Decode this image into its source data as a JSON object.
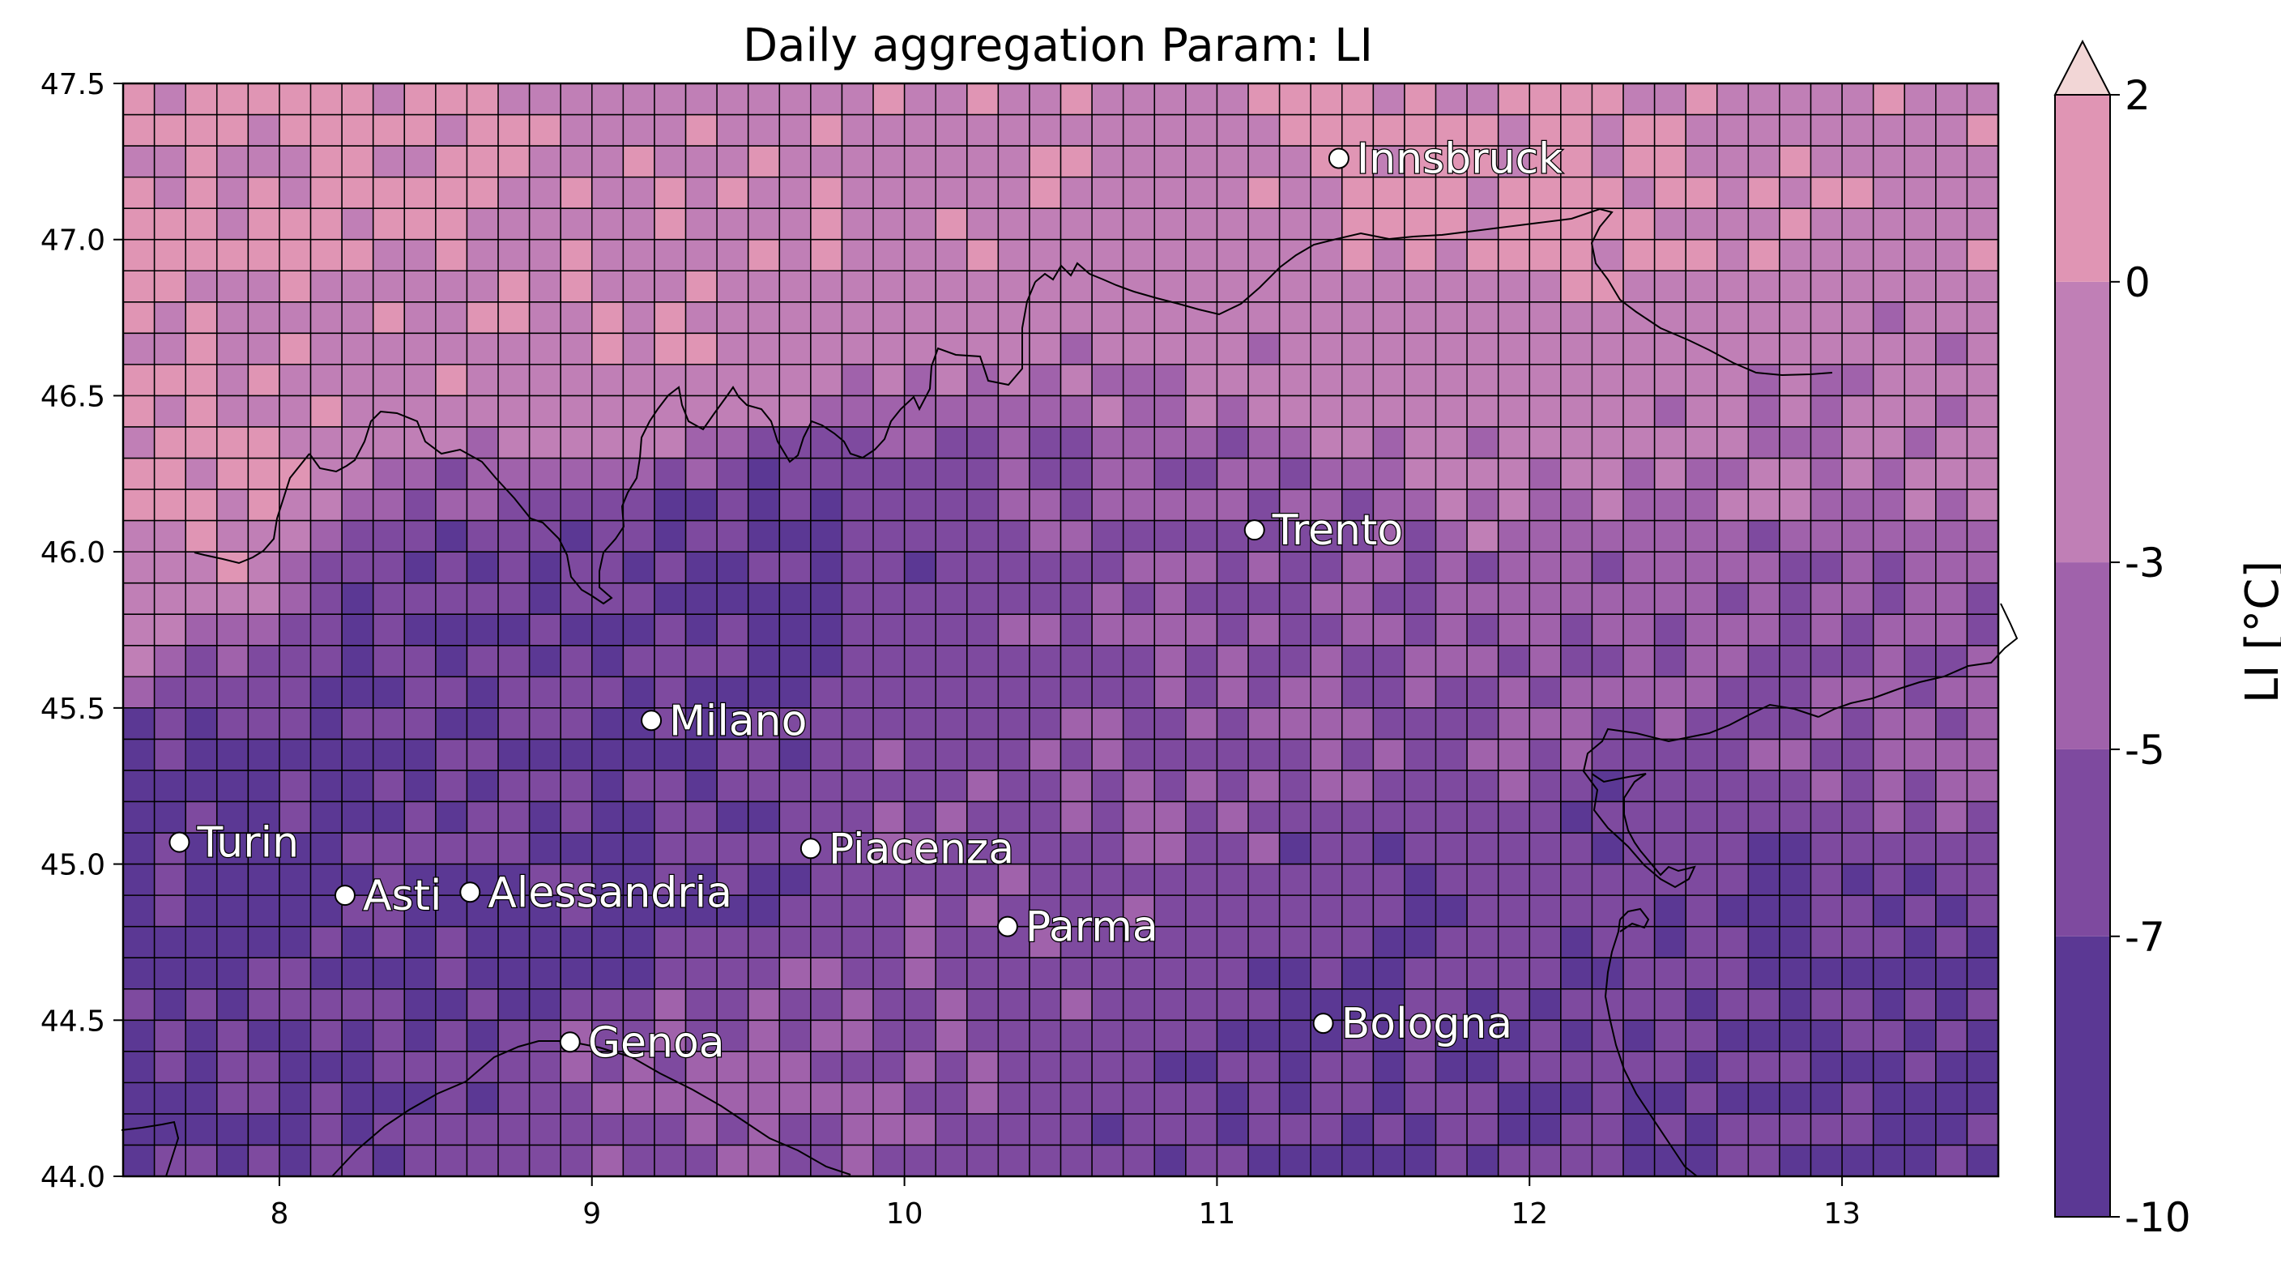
{
  "title": "Daily aggregation Param: LI",
  "map": {
    "lon_range": [
      7.5,
      13.5
    ],
    "lat_range": [
      44.0,
      47.5
    ],
    "grid_step": 0.1,
    "x_ticks": [
      "8",
      "9",
      "10",
      "11",
      "12",
      "13"
    ],
    "y_ticks": [
      "44.0",
      "44.5",
      "45.0",
      "45.5",
      "46.0",
      "46.5",
      "47.0",
      "47.5"
    ]
  },
  "colorbar": {
    "label": "LI [°C]",
    "levels": [
      -10,
      -7,
      -5,
      -3,
      0,
      2
    ],
    "tick_labels": [
      "-10",
      "-7",
      "-5",
      "-3",
      "0",
      "2"
    ],
    "colors": [
      "#5b3894",
      "#7e4a9f",
      "#a062ab",
      "#c07fb6",
      "#e095b4"
    ],
    "extend_color": "#f2d6d6"
  },
  "cities": [
    {
      "name": "Innsbruck",
      "lon": 11.39,
      "lat": 47.26
    },
    {
      "name": "Trento",
      "lon": 11.12,
      "lat": 46.07
    },
    {
      "name": "Milano",
      "lon": 9.19,
      "lat": 45.46
    },
    {
      "name": "Turin",
      "lon": 7.68,
      "lat": 45.07
    },
    {
      "name": "Piacenza",
      "lon": 9.7,
      "lat": 45.05
    },
    {
      "name": "Asti",
      "lon": 8.21,
      "lat": 44.9
    },
    {
      "name": "Alessandria",
      "lon": 8.61,
      "lat": 44.91
    },
    {
      "name": "Parma",
      "lon": 10.33,
      "lat": 44.8
    },
    {
      "name": "Bologna",
      "lon": 11.34,
      "lat": 44.49
    },
    {
      "name": "Genoa",
      "lon": 8.93,
      "lat": 44.43
    }
  ],
  "field_anchors": [
    {
      "lon": 8.0,
      "lat": 47.3,
      "v": 0.5
    },
    {
      "lon": 10.0,
      "lat": 47.3,
      "v": -0.5
    },
    {
      "lon": 12.0,
      "lat": 47.1,
      "v": 0.8
    },
    {
      "lon": 13.2,
      "lat": 47.2,
      "v": -0.5
    },
    {
      "lon": 7.7,
      "lat": 46.2,
      "v": 0.3
    },
    {
      "lon": 9.0,
      "lat": 46.7,
      "v": -0.5
    },
    {
      "lon": 11.8,
      "lat": 46.6,
      "v": -2.0
    },
    {
      "lon": 13.2,
      "lat": 46.4,
      "v": -3.0
    },
    {
      "lon": 8.5,
      "lat": 45.8,
      "v": -6.8
    },
    {
      "lon": 9.5,
      "lat": 45.9,
      "v": -7.2
    },
    {
      "lon": 11.2,
      "lat": 45.9,
      "v": -5.2
    },
    {
      "lon": 13.0,
      "lat": 45.7,
      "v": -5.0
    },
    {
      "lon": 7.8,
      "lat": 45.0,
      "v": -7.8
    },
    {
      "lon": 9.0,
      "lat": 44.9,
      "v": -7.5
    },
    {
      "lon": 10.3,
      "lat": 45.2,
      "v": -5.5
    },
    {
      "lon": 12.5,
      "lat": 44.8,
      "v": -6.5
    },
    {
      "lon": 8.0,
      "lat": 44.2,
      "v": -7.0
    },
    {
      "lon": 9.5,
      "lat": 44.3,
      "v": -4.8
    },
    {
      "lon": 11.5,
      "lat": 44.4,
      "v": -6.8
    },
    {
      "lon": 13.2,
      "lat": 44.3,
      "v": -7.2
    }
  ]
}
